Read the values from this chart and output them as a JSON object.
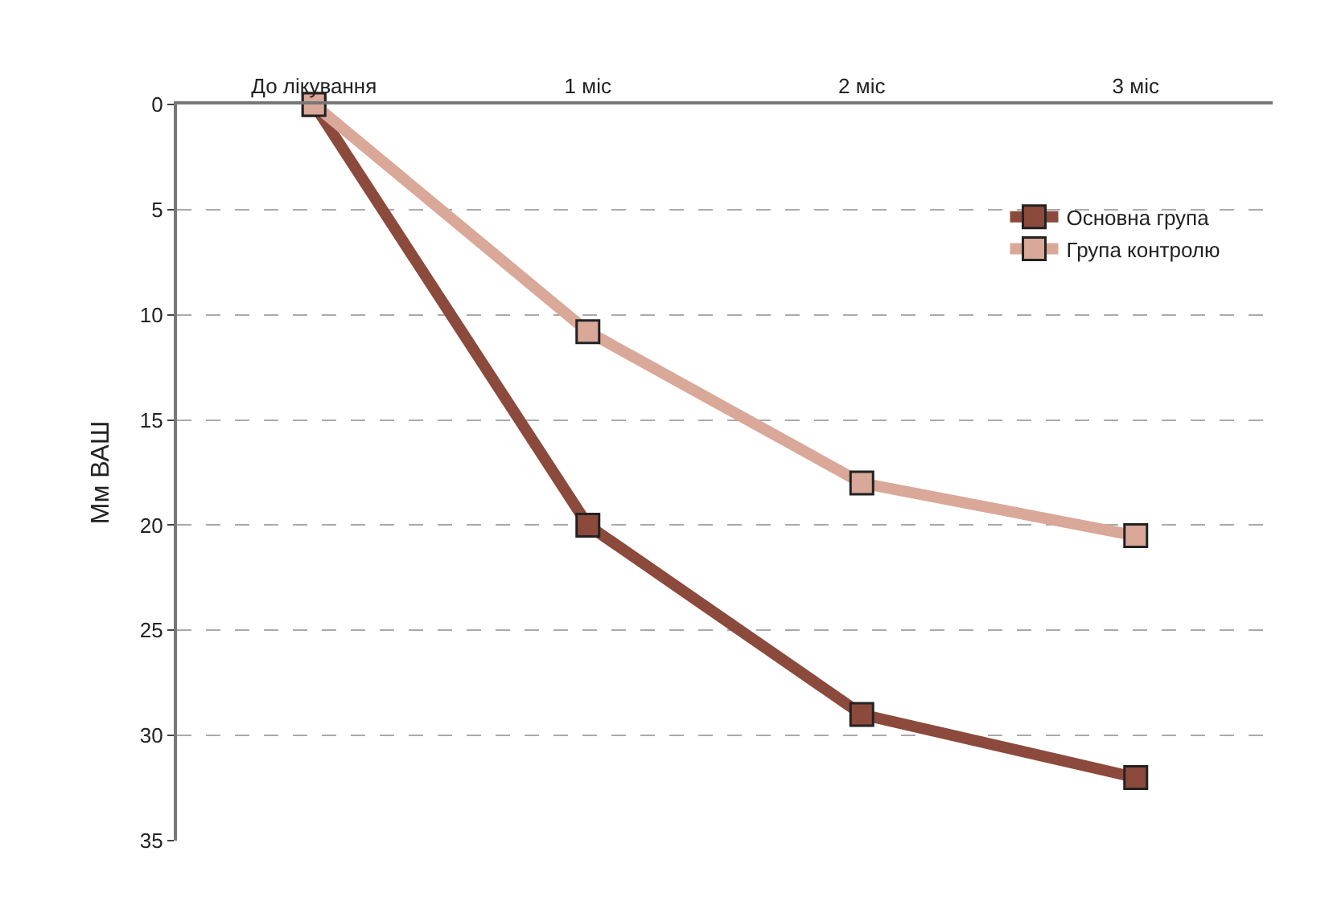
{
  "chart_data": {
    "type": "line",
    "ylabel": "Мм ВАШ",
    "categories": [
      "До лікування",
      "1 міс",
      "2 міс",
      "3 міс"
    ],
    "series": [
      {
        "name": "Основна група",
        "color": "#8b4a3c",
        "values": [
          0,
          20,
          29,
          32
        ]
      },
      {
        "name": "Група контролю",
        "color": "#d9a898",
        "values": [
          0,
          10.8,
          18,
          20.5
        ]
      }
    ],
    "ylim": [
      35,
      0
    ],
    "yticks": [
      0,
      5,
      10,
      15,
      20,
      25,
      30,
      35
    ],
    "grid": "y",
    "legend": "top right",
    "marker": "square",
    "line_style": "solid"
  }
}
